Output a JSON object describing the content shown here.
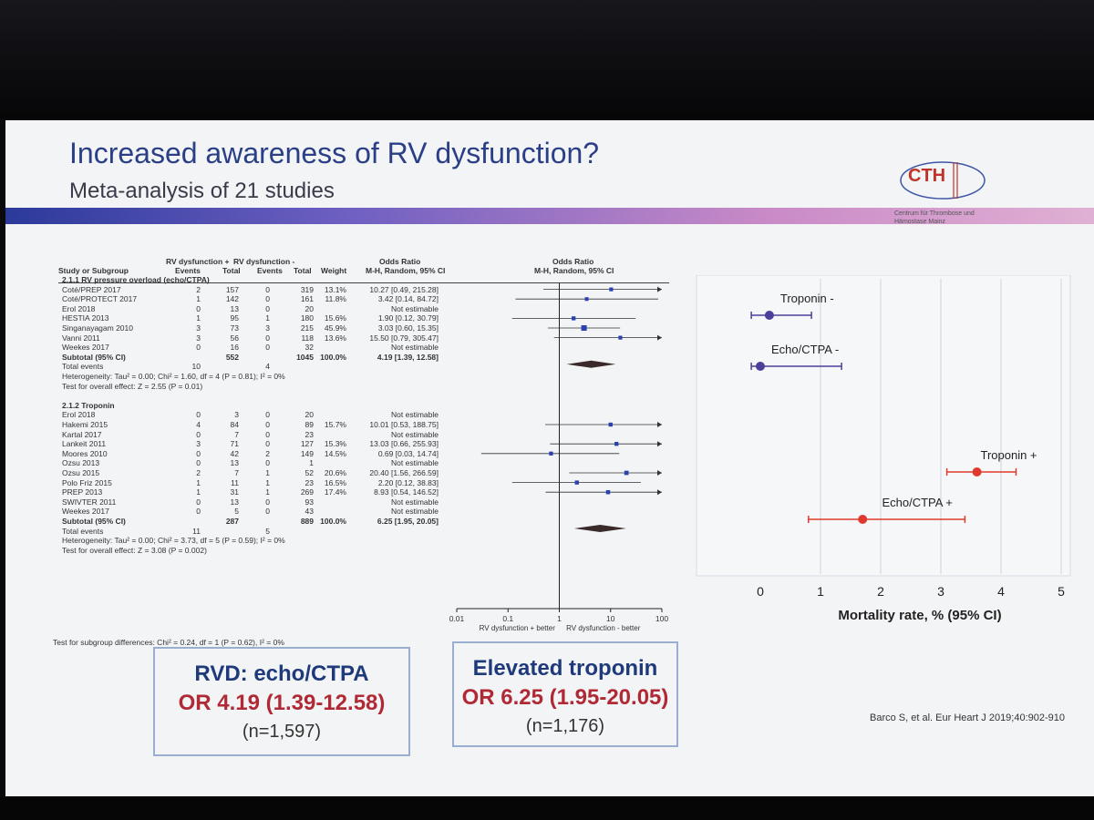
{
  "slide": {
    "title": "Increased awareness of RV dysfunction?",
    "subtitle": "Meta-analysis of 21 studies",
    "logo_text": "CTH",
    "logo_sub": "Centrum für Thrombose und Hämostase",
    "logo_city": "Mainz",
    "citation": "Barco S, et al. Eur Heart J 2019;40:902-910"
  },
  "forest": {
    "col_headers": {
      "study": "Study or Subgroup",
      "pos_group": "RV dysfunction +",
      "neg_group": "RV dysfunction -",
      "events": "Events",
      "total": "Total",
      "weight": "Weight",
      "or_label": "Odds Ratio",
      "method": "M-H, Random, 95% CI"
    },
    "groups": [
      {
        "name": "2.1.1 RV pressure overload (echo/CTPA)",
        "rows": [
          {
            "study": "Coté/PREP 2017",
            "e1": "2",
            "t1": "157",
            "e2": "0",
            "t2": "319",
            "w": "13.1%",
            "ci": "10.27 [0.49, 215.28]"
          },
          {
            "study": "Coté/PROTECT 2017",
            "e1": "1",
            "t1": "142",
            "e2": "0",
            "t2": "161",
            "w": "11.8%",
            "ci": "3.42 [0.14, 84.72]"
          },
          {
            "study": "Erol 2018",
            "e1": "0",
            "t1": "13",
            "e2": "0",
            "t2": "20",
            "w": "",
            "ci": "Not estimable"
          },
          {
            "study": "HESTIA 2013",
            "e1": "1",
            "t1": "95",
            "e2": "1",
            "t2": "180",
            "w": "15.6%",
            "ci": "1.90 [0.12, 30.79]"
          },
          {
            "study": "Singanayagam 2010",
            "e1": "3",
            "t1": "73",
            "e2": "3",
            "t2": "215",
            "w": "45.9%",
            "ci": "3.03 [0.60, 15.35]"
          },
          {
            "study": "Vanni 2011",
            "e1": "3",
            "t1": "56",
            "e2": "0",
            "t2": "118",
            "w": "13.6%",
            "ci": "15.50 [0.79, 305.47]"
          },
          {
            "study": "Weekes 2017",
            "e1": "0",
            "t1": "16",
            "e2": "0",
            "t2": "32",
            "w": "",
            "ci": "Not estimable"
          }
        ],
        "subtotal": {
          "label": "Subtotal (95% CI)",
          "t1": "552",
          "t2": "1045",
          "w": "100.0%",
          "ci": "4.19 [1.39, 12.58]"
        },
        "total_events": {
          "label": "Total events",
          "e1": "10",
          "e2": "4"
        },
        "heterogeneity": "Heterogeneity: Tau² = 0.00; Chi² = 1.60, df = 4 (P = 0.81); I² = 0%",
        "overall": "Test for overall effect: Z = 2.55 (P = 0.01)"
      },
      {
        "name": "2.1.2 Troponin",
        "rows": [
          {
            "study": "Erol 2018",
            "e1": "0",
            "t1": "3",
            "e2": "0",
            "t2": "20",
            "w": "",
            "ci": "Not estimable"
          },
          {
            "study": "Hakemi 2015",
            "e1": "4",
            "t1": "84",
            "e2": "0",
            "t2": "89",
            "w": "15.7%",
            "ci": "10.01 [0.53, 188.75]"
          },
          {
            "study": "Kartal 2017",
            "e1": "0",
            "t1": "7",
            "e2": "0",
            "t2": "23",
            "w": "",
            "ci": "Not estimable"
          },
          {
            "study": "Lankeit 2011",
            "e1": "3",
            "t1": "71",
            "e2": "0",
            "t2": "127",
            "w": "15.3%",
            "ci": "13.03 [0.66, 255.93]"
          },
          {
            "study": "Moores 2010",
            "e1": "0",
            "t1": "42",
            "e2": "2",
            "t2": "149",
            "w": "14.5%",
            "ci": "0.69 [0.03, 14.74]"
          },
          {
            "study": "Ozsu 2013",
            "e1": "0",
            "t1": "13",
            "e2": "0",
            "t2": "1",
            "w": "",
            "ci": "Not estimable"
          },
          {
            "study": "Ozsu 2015",
            "e1": "2",
            "t1": "7",
            "e2": "1",
            "t2": "52",
            "w": "20.6%",
            "ci": "20.40 [1.56, 266.59]"
          },
          {
            "study": "Polo Friz 2015",
            "e1": "1",
            "t1": "11",
            "e2": "1",
            "t2": "23",
            "w": "16.5%",
            "ci": "2.20 [0.12, 38.83]"
          },
          {
            "study": "PREP 2013",
            "e1": "1",
            "t1": "31",
            "e2": "1",
            "t2": "269",
            "w": "17.4%",
            "ci": "8.93 [0.54, 146.52]"
          },
          {
            "study": "SWIVTER 2011",
            "e1": "0",
            "t1": "13",
            "e2": "0",
            "t2": "93",
            "w": "",
            "ci": "Not estimable"
          },
          {
            "study": "Weekes 2017",
            "e1": "0",
            "t1": "5",
            "e2": "0",
            "t2": "43",
            "w": "",
            "ci": "Not estimable"
          }
        ],
        "subtotal": {
          "label": "Subtotal (95% CI)",
          "t1": "287",
          "t2": "889",
          "w": "100.0%",
          "ci": "6.25 [1.95, 20.05]"
        },
        "total_events": {
          "label": "Total events",
          "e1": "11",
          "e2": "5"
        },
        "heterogeneity": "Heterogeneity: Tau² = 0.00; Chi² = 3.73, df = 5 (P = 0.59); I² = 0%",
        "overall": "Test for overall effect: Z = 3.08 (P = 0.002)"
      }
    ],
    "subgroup_test": "Test for subgroup differences: Chi² = 0.24, df = 1 (P = 0.62), I² = 0%",
    "axis_ticks": [
      "0.01",
      "0.1",
      "1",
      "10",
      "100"
    ],
    "favours_left": "RV dysfunction + better",
    "favours_right": "RV dysfunction - better"
  },
  "chart_data": [
    {
      "type": "forest",
      "scale": "log",
      "xlim": [
        0.01,
        100
      ],
      "reference_line": 1,
      "studies": [
        {
          "label": "Coté/PREP 2017",
          "or": 10.27,
          "lo": 0.49,
          "hi": 215.28,
          "weight": 13.1
        },
        {
          "label": "Coté/PROTECT 2017",
          "or": 3.42,
          "lo": 0.14,
          "hi": 84.72,
          "weight": 11.8
        },
        {
          "label": "HESTIA 2013",
          "or": 1.9,
          "lo": 0.12,
          "hi": 30.79,
          "weight": 15.6
        },
        {
          "label": "Singanayagam 2010",
          "or": 3.03,
          "lo": 0.6,
          "hi": 15.35,
          "weight": 45.9
        },
        {
          "label": "Vanni 2011",
          "or": 15.5,
          "lo": 0.79,
          "hi": 305.47,
          "weight": 13.6
        },
        {
          "label": "Subtotal (95% CI)",
          "or": 4.19,
          "lo": 1.39,
          "hi": 12.58,
          "diamond": true
        },
        {
          "label": "Hakemi 2015",
          "or": 10.01,
          "lo": 0.53,
          "hi": 188.75,
          "weight": 15.7
        },
        {
          "label": "Lankeit 2011",
          "or": 13.03,
          "lo": 0.66,
          "hi": 255.93,
          "weight": 15.3
        },
        {
          "label": "Moores 2010",
          "or": 0.69,
          "lo": 0.03,
          "hi": 14.74,
          "weight": 14.5
        },
        {
          "label": "Ozsu 2015",
          "or": 20.4,
          "lo": 1.56,
          "hi": 266.59,
          "weight": 20.6
        },
        {
          "label": "Polo Friz 2015",
          "or": 2.2,
          "lo": 0.12,
          "hi": 38.83,
          "weight": 16.5
        },
        {
          "label": "PREP 2013",
          "or": 8.93,
          "lo": 0.54,
          "hi": 146.52,
          "weight": 17.4
        },
        {
          "label": "Subtotal (95% CI)",
          "or": 6.25,
          "lo": 1.95,
          "hi": 20.05,
          "diamond": true
        }
      ]
    },
    {
      "type": "scatter",
      "xlabel": "Mortality rate, % (95% CI)",
      "xlim": [
        0,
        5
      ],
      "xticks": [
        "0",
        "1",
        "2",
        "3",
        "4",
        "5"
      ],
      "grid": true,
      "points": [
        {
          "label": "Troponin -",
          "x": 0.15,
          "lo": -0.15,
          "hi": 0.85,
          "color": "#4a3f99"
        },
        {
          "label": "Echo/CTPA -",
          "x": 0.0,
          "lo": -0.15,
          "hi": 1.35,
          "color": "#4a3f99"
        },
        {
          "label": "Troponin +",
          "x": 3.6,
          "lo": 3.1,
          "hi": 4.25,
          "color": "#e03a2f"
        },
        {
          "label": "Echo/CTPA +",
          "x": 1.7,
          "lo": 0.8,
          "hi": 3.4,
          "color": "#e03a2f"
        }
      ]
    }
  ],
  "summary_boxes": [
    {
      "title": "RVD: echo/CTPA",
      "or": "OR 4.19 (1.39-12.58)",
      "n": "(n=1,597)"
    },
    {
      "title": "Elevated troponin",
      "or": "OR 6.25 (1.95-20.05)",
      "n": "(n=1,176)"
    }
  ]
}
